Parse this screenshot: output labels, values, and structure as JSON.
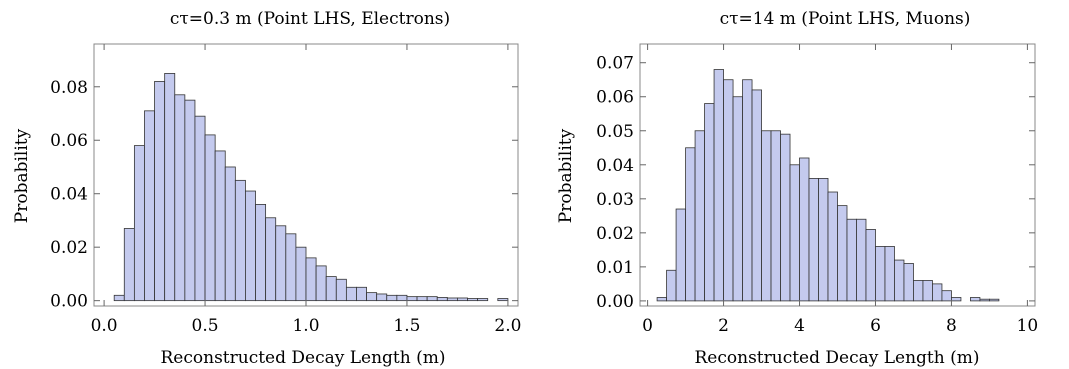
{
  "colors": {
    "bar_fill": "#c4caee",
    "bar_stroke": "#333333",
    "frame": "#888888"
  },
  "chart_data": [
    {
      "type": "bar",
      "title": "cτ=0.3 m (Point LHS, Electrons)",
      "xlabel": "Reconstructed Decay Length (m)",
      "ylabel": "Probability",
      "xlim": [
        -0.05,
        2.05
      ],
      "ylim": [
        -0.002,
        0.096
      ],
      "xticks": [
        "0.0",
        "0.5",
        "1.0",
        "1.5",
        "2.0"
      ],
      "yticks": [
        "0.00",
        "0.02",
        "0.04",
        "0.06",
        "0.08"
      ],
      "bin_width": 0.05,
      "bin_starts": [
        0.05,
        0.1,
        0.15,
        0.2,
        0.25,
        0.3,
        0.35,
        0.4,
        0.45,
        0.5,
        0.55,
        0.6,
        0.65,
        0.7,
        0.75,
        0.8,
        0.85,
        0.9,
        0.95,
        1.0,
        1.05,
        1.1,
        1.15,
        1.2,
        1.25,
        1.3,
        1.35,
        1.4,
        1.45,
        1.5,
        1.55,
        1.6,
        1.65,
        1.7,
        1.75,
        1.8,
        1.85,
        1.95
      ],
      "values": [
        0.002,
        0.027,
        0.058,
        0.071,
        0.082,
        0.085,
        0.077,
        0.075,
        0.069,
        0.062,
        0.056,
        0.05,
        0.045,
        0.041,
        0.036,
        0.031,
        0.028,
        0.025,
        0.02,
        0.016,
        0.013,
        0.009,
        0.008,
        0.005,
        0.005,
        0.003,
        0.0025,
        0.002,
        0.002,
        0.0015,
        0.0015,
        0.0015,
        0.0012,
        0.001,
        0.001,
        0.0008,
        0.0008,
        0.0008
      ]
    },
    {
      "type": "bar",
      "title": "cτ=14 m (Point LHS, Muons)",
      "xlabel": "Reconstructed Decay Length (m)",
      "ylabel": "Probability",
      "xlim": [
        -0.2,
        10.2
      ],
      "ylim": [
        -0.0015,
        0.0755
      ],
      "xticks": [
        "0",
        "2",
        "4",
        "6",
        "8",
        "10"
      ],
      "yticks": [
        "0.00",
        "0.01",
        "0.02",
        "0.03",
        "0.04",
        "0.05",
        "0.06",
        "0.07"
      ],
      "bin_width": 0.25,
      "bin_starts": [
        0.25,
        0.5,
        0.75,
        1.0,
        1.25,
        1.5,
        1.75,
        2.0,
        2.25,
        2.5,
        2.75,
        3.0,
        3.25,
        3.5,
        3.75,
        4.0,
        4.25,
        4.5,
        4.75,
        5.0,
        5.25,
        5.5,
        5.75,
        6.0,
        6.25,
        6.5,
        6.75,
        7.0,
        7.25,
        7.5,
        7.75,
        8.0,
        8.5,
        8.75,
        9.0
      ],
      "values": [
        0.001,
        0.009,
        0.027,
        0.045,
        0.05,
        0.058,
        0.068,
        0.065,
        0.06,
        0.065,
        0.062,
        0.05,
        0.05,
        0.049,
        0.04,
        0.042,
        0.036,
        0.036,
        0.032,
        0.028,
        0.024,
        0.024,
        0.021,
        0.016,
        0.016,
        0.012,
        0.011,
        0.006,
        0.006,
        0.005,
        0.003,
        0.001,
        0.001,
        0.0005,
        0.0005
      ]
    }
  ]
}
